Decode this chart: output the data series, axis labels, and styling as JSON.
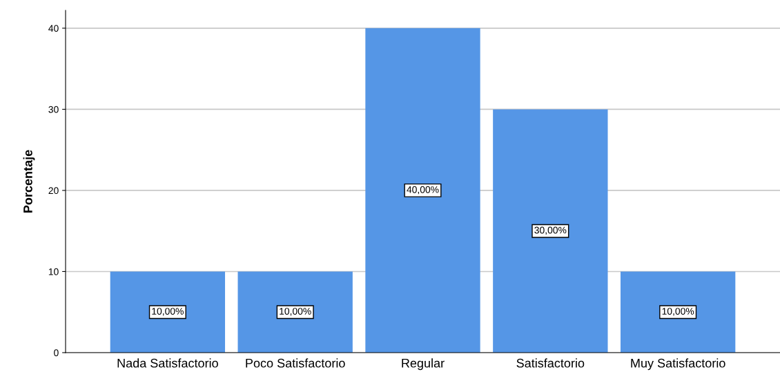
{
  "chart_data": {
    "type": "bar",
    "ylabel": "Porcentaje",
    "categories": [
      "Nada Satisfactorio",
      "Poco Satisfactorio",
      "Regular",
      "Satisfactorio",
      "Muy Satisfactorio"
    ],
    "values": [
      10,
      10,
      40,
      30,
      10
    ],
    "value_labels": [
      "10,00%",
      "10,00%",
      "40,00%",
      "30,00%",
      "10,00%"
    ],
    "color": "#5596e6",
    "ylim": [
      0,
      42.2
    ],
    "yticks": [
      0,
      10,
      20,
      30,
      40
    ],
    "grid": "y"
  }
}
